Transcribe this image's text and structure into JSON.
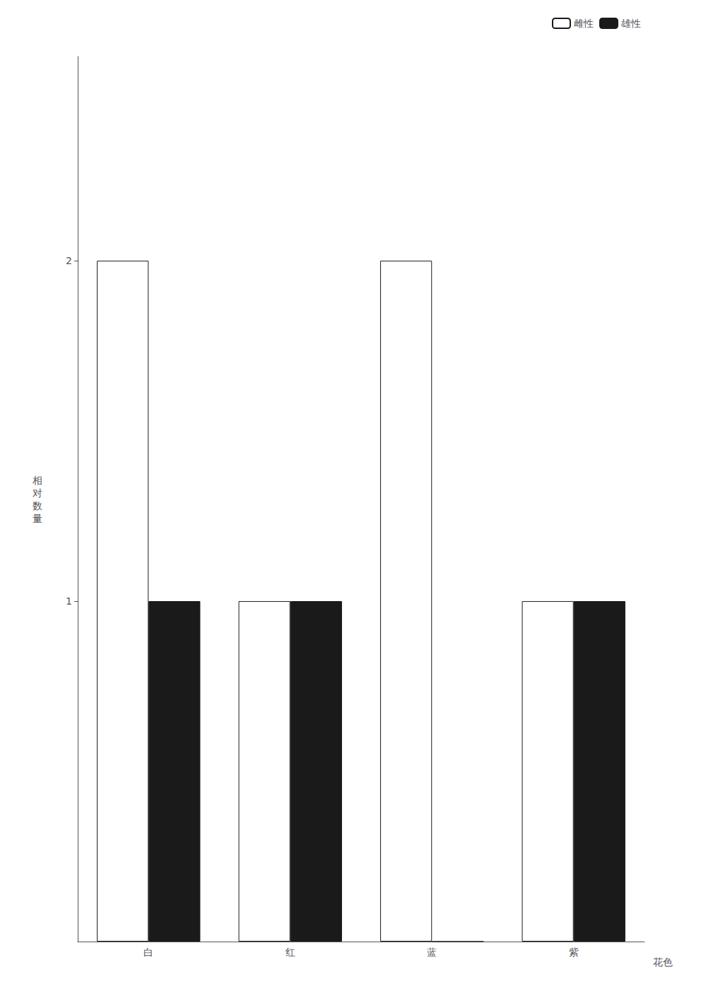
{
  "chart_data": {
    "type": "bar",
    "categories": [
      "白",
      "红",
      "蓝",
      "紫"
    ],
    "series": [
      {
        "name": "雌性",
        "color": "#ffffff",
        "values": [
          2,
          1,
          2,
          1
        ]
      },
      {
        "name": "雄性",
        "color": "#1a1a1a",
        "values": [
          1,
          1,
          0,
          1
        ]
      }
    ],
    "x_label": "花色",
    "y_label": "相\n对\n数\n量",
    "ylim": [
      0,
      2.6
    ],
    "yticks": [
      1,
      2
    ],
    "grid": false,
    "legend": "upper right"
  }
}
